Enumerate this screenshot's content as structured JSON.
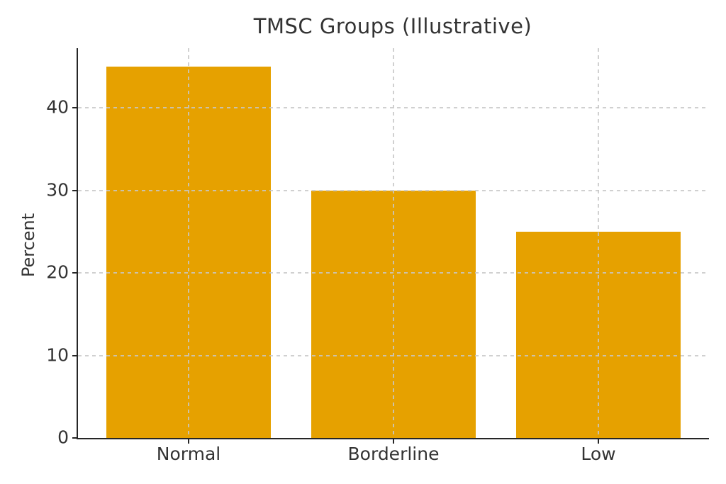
{
  "page": {
    "background": "#ffffff"
  },
  "chart_data": {
    "type": "bar",
    "title": "TMSC Groups (Illustrative)",
    "categories": [
      "Normal",
      "Borderline",
      "Low"
    ],
    "values": [
      45,
      30,
      25
    ],
    "xlabel": "",
    "ylabel": "Percent",
    "ylim": [
      0,
      47.25
    ],
    "yticks": [
      0,
      10,
      20,
      30,
      40
    ],
    "bar_color": "#E6A100",
    "bar_width_units": 0.8,
    "grid": true,
    "grid_style": "dashed",
    "grid_color": "#c9c9c9",
    "spine_color": "#262626",
    "text_color": "#333333",
    "legend_position": "none"
  }
}
